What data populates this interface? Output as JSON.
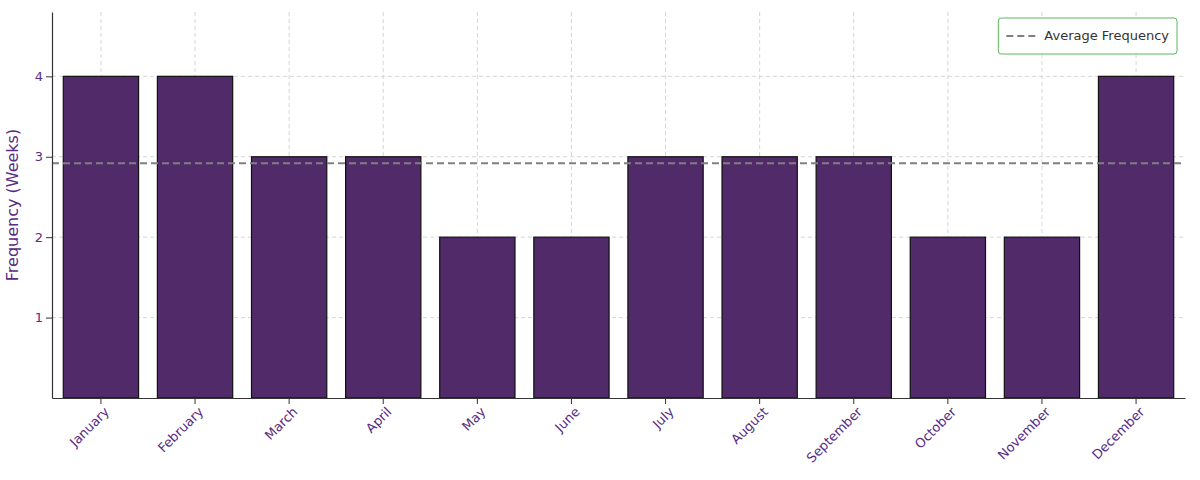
{
  "chart_data": {
    "type": "bar",
    "y_label": "Frequency (Weeks)",
    "categories": [
      "January",
      "February",
      "March",
      "April",
      "May",
      "June",
      "July",
      "August",
      "September",
      "October",
      "November",
      "December"
    ],
    "values": [
      4,
      4,
      3,
      3,
      2,
      2,
      3,
      3,
      3,
      2,
      2,
      4
    ],
    "color": "#512a69",
    "ylim": [
      0,
      4.8
    ],
    "yticks": [
      1,
      2,
      3,
      4
    ],
    "grid": true,
    "legend": "upper right",
    "reference_lines": [
      {
        "name": "Average Frequency",
        "value": 2.92,
        "color": "#808080",
        "line_style": "dashed"
      }
    ]
  }
}
